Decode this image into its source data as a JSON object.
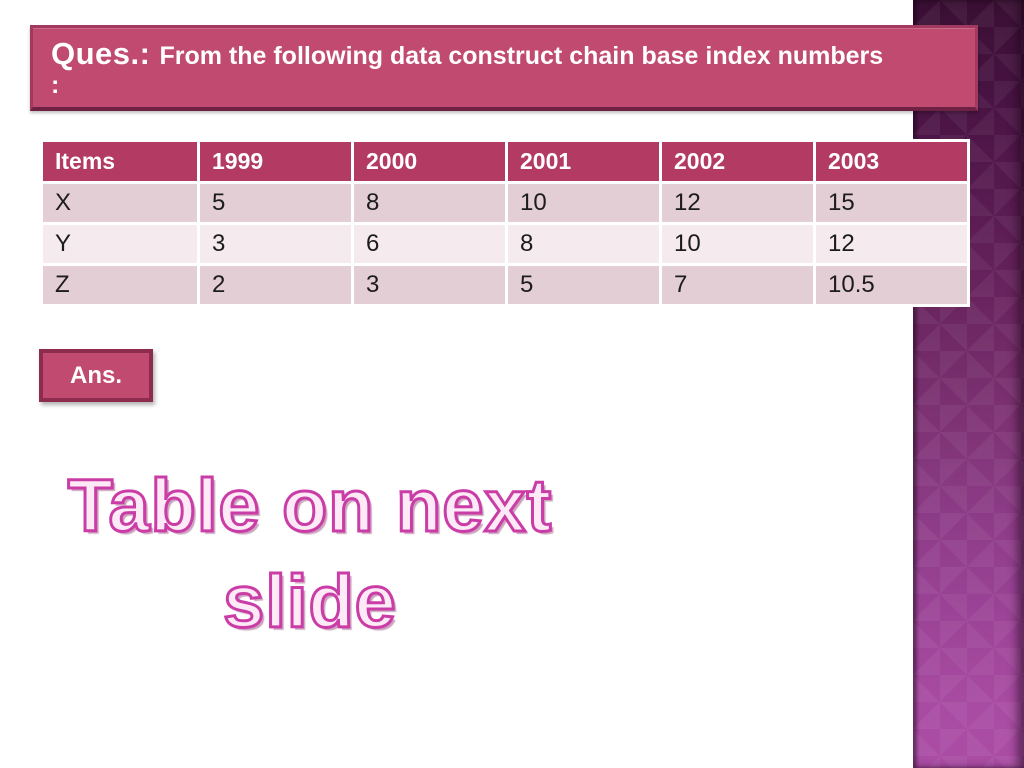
{
  "slide": {
    "question": {
      "prefix": "Ques.:",
      "text": "From the following data construct chain base index numbers",
      "line2": ":"
    },
    "data_table": {
      "headers": [
        "Items",
        "1999",
        "2000",
        "2001",
        "2002",
        "2003"
      ],
      "rows": [
        [
          "X",
          "5",
          "8",
          "10",
          "12",
          "15"
        ],
        [
          "Y",
          "3",
          "6",
          "8",
          "10",
          "12"
        ],
        [
          "Z",
          "2",
          "3",
          "5",
          "7",
          "10.5"
        ]
      ]
    },
    "ans_button_label": "Ans.",
    "wordart": {
      "line1": "Table on next",
      "line2": "slide"
    },
    "colors": {
      "banner_fill": "#c04a70",
      "banner_border": "#a23a60",
      "table_header_fill": "#b23a63",
      "table_row_odd": "#e4ced5",
      "table_row_even": "#f5ebef",
      "strip_gradient_top": "#3a0f34",
      "strip_gradient_bottom": "#ab4da5",
      "wordart_stroke": "#ca3ca6",
      "wordart_fill": "#fdeaf6"
    }
  },
  "chart_data": {
    "type": "table",
    "title": "From the following data construct chain base index numbers",
    "columns": [
      "Items",
      "1999",
      "2000",
      "2001",
      "2002",
      "2003"
    ],
    "rows": [
      [
        "X",
        5,
        8,
        10,
        12,
        15
      ],
      [
        "Y",
        3,
        6,
        8,
        10,
        12
      ],
      [
        "Z",
        2,
        3,
        5,
        7,
        10.5
      ]
    ]
  }
}
